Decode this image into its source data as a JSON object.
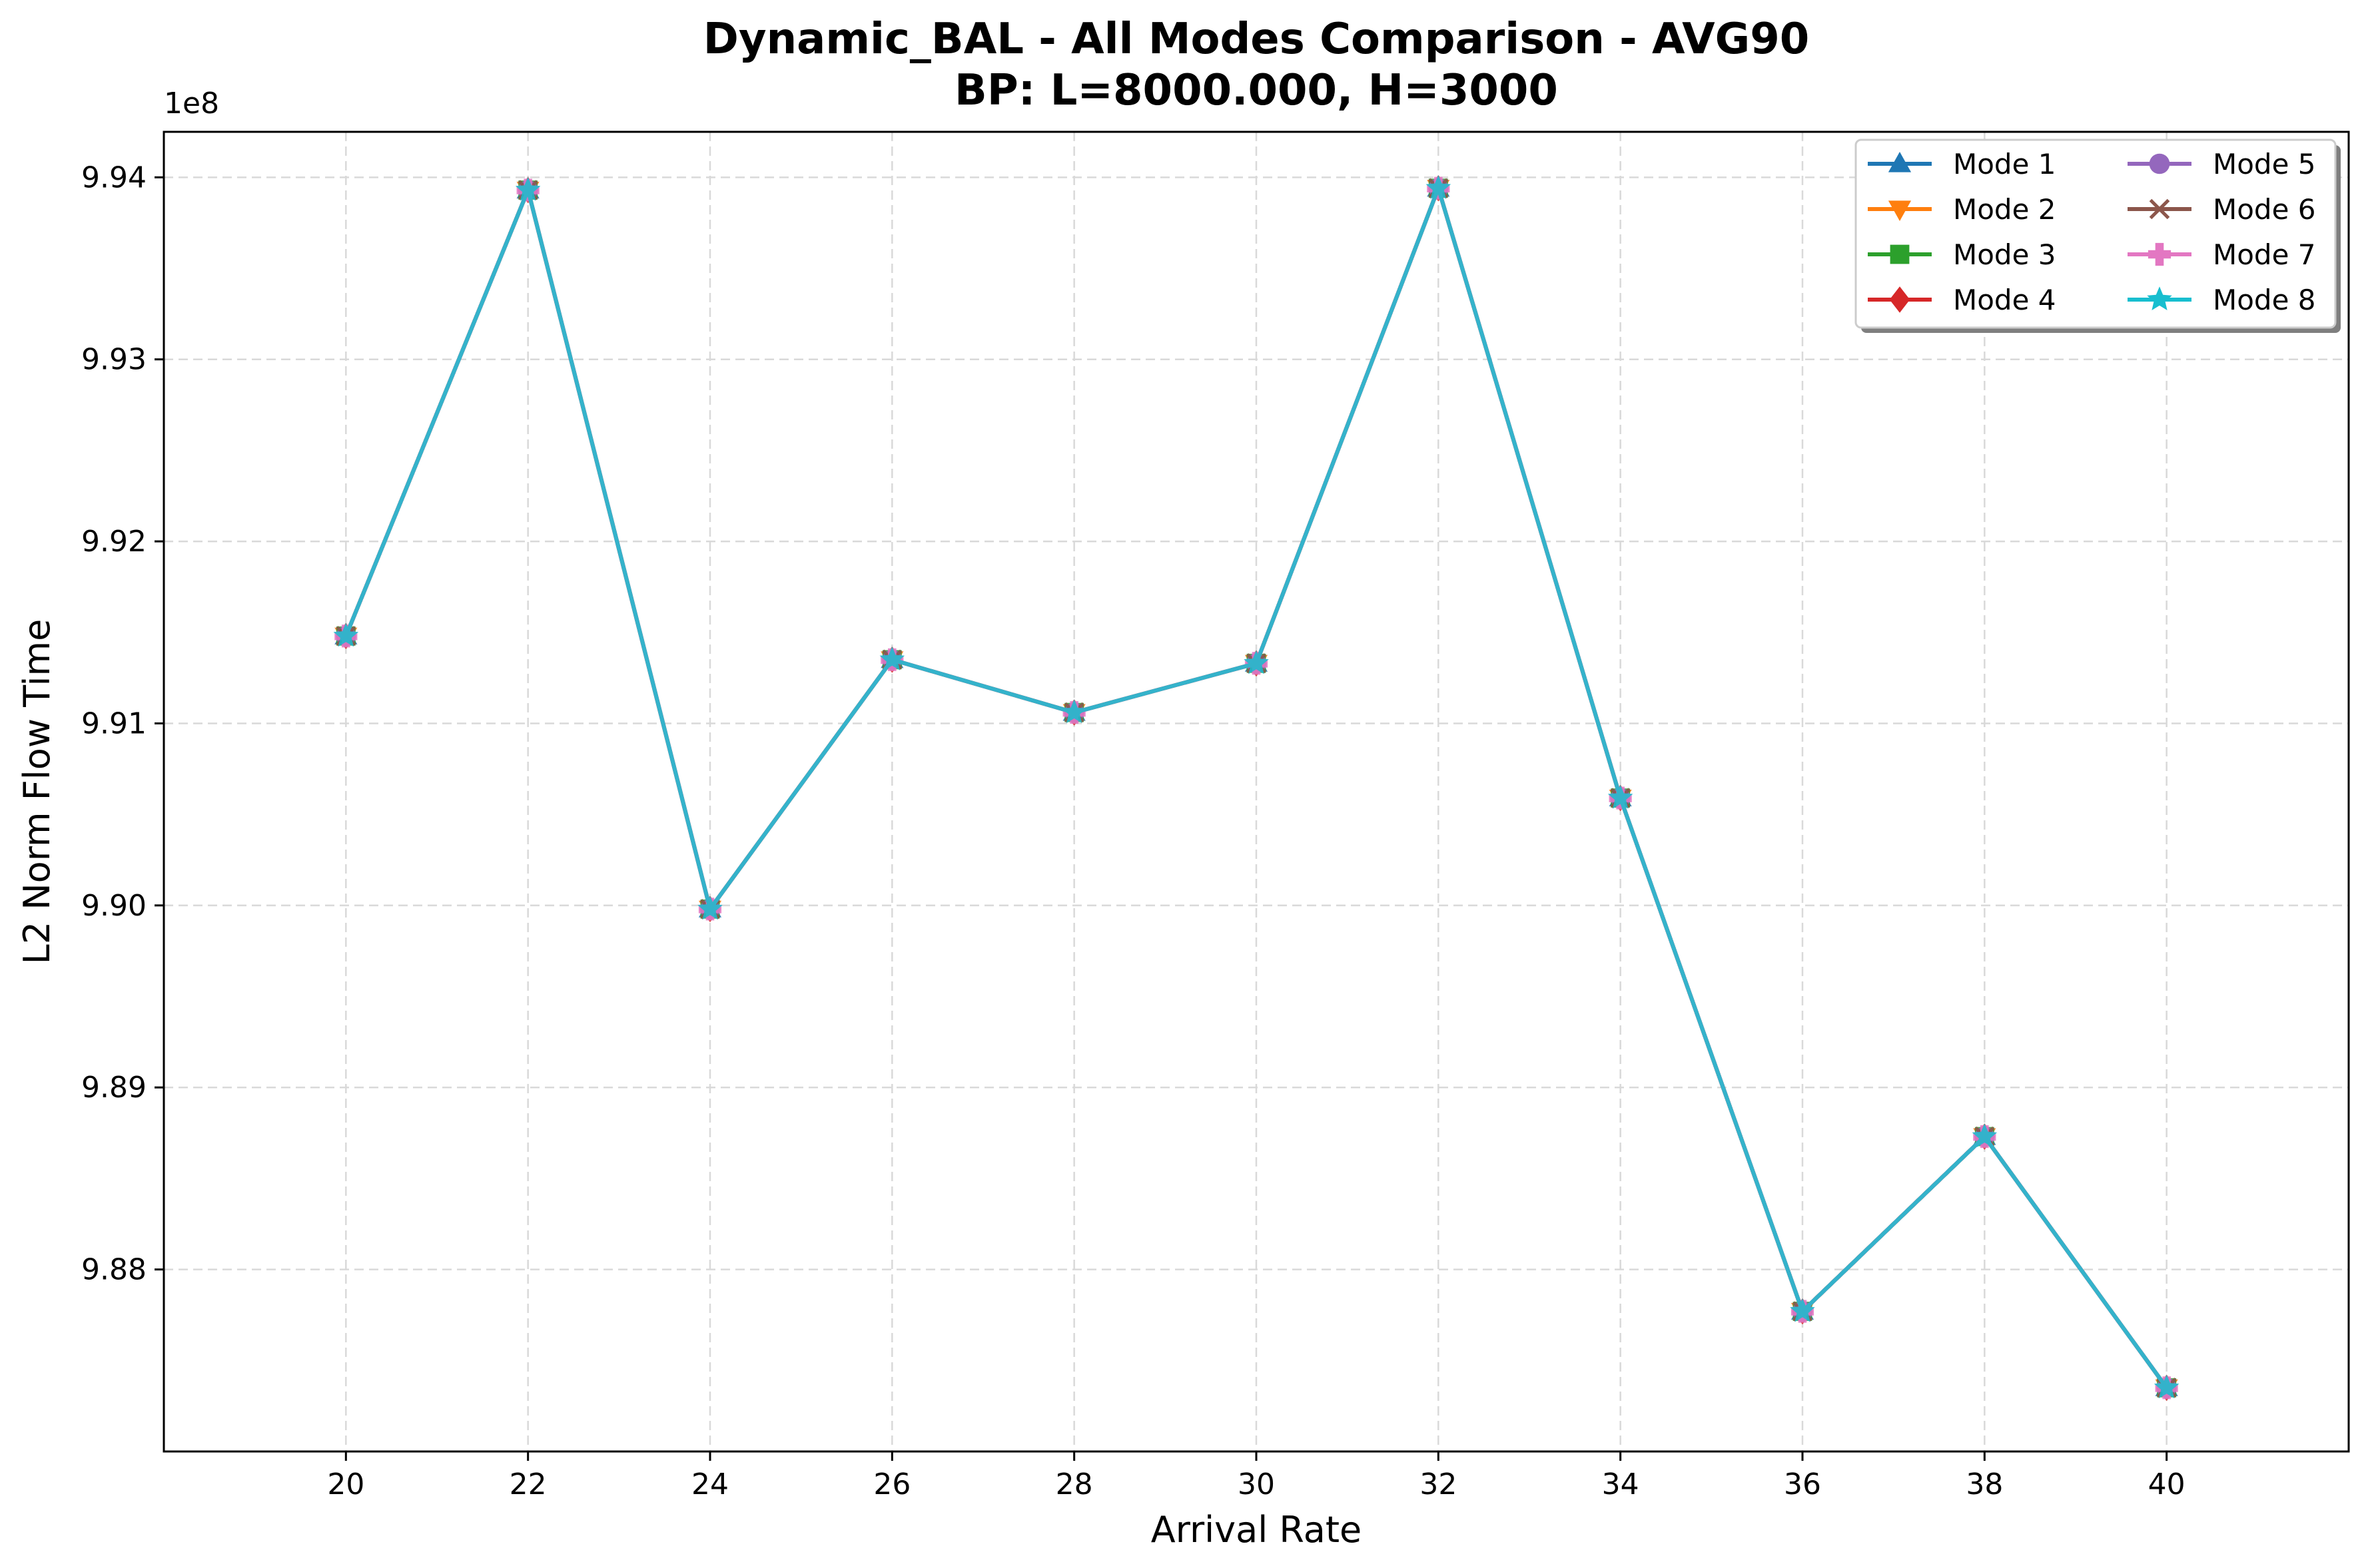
{
  "chart_data": {
    "type": "line",
    "title": "Dynamic_BAL - All Modes Comparison - AVG90",
    "subtitle": "BP: L=8000.000, H=3000",
    "xlabel": "Arrival Rate",
    "ylabel": "L2 Norm Flow Time",
    "y_offset_label": "1e8",
    "y_scale_factor": 100000000,
    "xlim": [
      18,
      42
    ],
    "ylim": [
      987.0,
      994.25
    ],
    "x_ticks": [
      20,
      22,
      24,
      26,
      28,
      30,
      32,
      34,
      36,
      38,
      40
    ],
    "y_ticks": [
      988,
      989,
      990,
      991,
      992,
      993,
      994
    ],
    "y_tick_labels": [
      "9.88",
      "9.89",
      "9.90",
      "9.91",
      "9.92",
      "9.93",
      "9.94"
    ],
    "grid": true,
    "legend_position": "top-right",
    "legend_columns": 2,
    "x": [
      20,
      22,
      24,
      26,
      28,
      30,
      32,
      34,
      36,
      38,
      40
    ],
    "series": [
      {
        "name": "Mode 1",
        "color": "#1f77b4",
        "marker": "triangle-up",
        "values": [
          991.48,
          993.93,
          989.98,
          991.35,
          991.06,
          991.33,
          993.94,
          990.59,
          987.77,
          988.73,
          987.35
        ]
      },
      {
        "name": "Mode 2",
        "color": "#ff7f0e",
        "marker": "triangle-down",
        "values": [
          991.48,
          993.93,
          989.98,
          991.35,
          991.06,
          991.33,
          993.94,
          990.59,
          987.77,
          988.73,
          987.35
        ]
      },
      {
        "name": "Mode 3",
        "color": "#2ca02c",
        "marker": "square",
        "values": [
          991.48,
          993.93,
          989.98,
          991.35,
          991.06,
          991.33,
          993.94,
          990.59,
          987.77,
          988.73,
          987.35
        ]
      },
      {
        "name": "Mode 4",
        "color": "#d62728",
        "marker": "diamond",
        "values": [
          991.48,
          993.93,
          989.98,
          991.35,
          991.06,
          991.33,
          993.94,
          990.59,
          987.77,
          988.73,
          987.35
        ]
      },
      {
        "name": "Mode 5",
        "color": "#9467bd",
        "marker": "circle",
        "values": [
          991.48,
          993.93,
          989.98,
          991.35,
          991.06,
          991.33,
          993.94,
          990.59,
          987.77,
          988.73,
          987.35
        ]
      },
      {
        "name": "Mode 6",
        "color": "#8c564b",
        "marker": "x",
        "values": [
          991.48,
          993.93,
          989.98,
          991.35,
          991.06,
          991.33,
          993.94,
          990.59,
          987.77,
          988.73,
          987.35
        ]
      },
      {
        "name": "Mode 7",
        "color": "#e377c2",
        "marker": "plus",
        "values": [
          991.48,
          993.93,
          989.98,
          991.35,
          991.06,
          991.33,
          993.94,
          990.59,
          987.77,
          988.73,
          987.35
        ]
      },
      {
        "name": "Mode 8",
        "color": "#17becf",
        "marker": "star",
        "values": [
          991.48,
          993.93,
          989.98,
          991.35,
          991.06,
          991.33,
          993.94,
          990.59,
          987.77,
          988.73,
          987.35
        ]
      }
    ]
  }
}
